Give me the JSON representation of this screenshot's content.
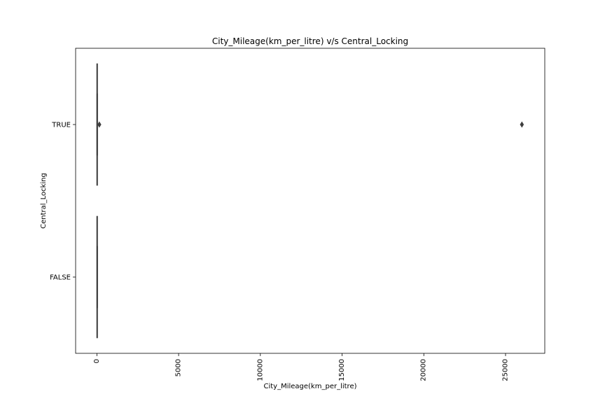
{
  "chart_data": {
    "type": "box",
    "orientation": "horizontal",
    "title": "City_Mileage(km_per_litre) v/s Central_Locking",
    "xlabel": "City_Mileage(km_per_litre)",
    "ylabel": "Central_Locking",
    "xlim": [
      -1300,
      27400
    ],
    "xticks": [
      0,
      5000,
      10000,
      15000,
      20000,
      25000
    ],
    "xtick_labels": [
      "0",
      "5000",
      "10000",
      "15000",
      "20000",
      "25000"
    ],
    "categories": [
      "TRUE",
      "FALSE"
    ],
    "boxes": [
      {
        "category": "TRUE",
        "whisker_low": 5,
        "q1": 11,
        "median": 15,
        "q3": 18,
        "whisker_high": 30,
        "outliers": [
          150,
          26000
        ]
      },
      {
        "category": "FALSE",
        "whisker_low": 5,
        "q1": 12,
        "median": 16,
        "q3": 19,
        "whisker_high": 30,
        "outliers": []
      }
    ],
    "colors": {
      "box_edge": "#3f3f3f",
      "box_fill": "#4a4a4a",
      "outlier": "#3f3f3f"
    },
    "grid": false
  }
}
